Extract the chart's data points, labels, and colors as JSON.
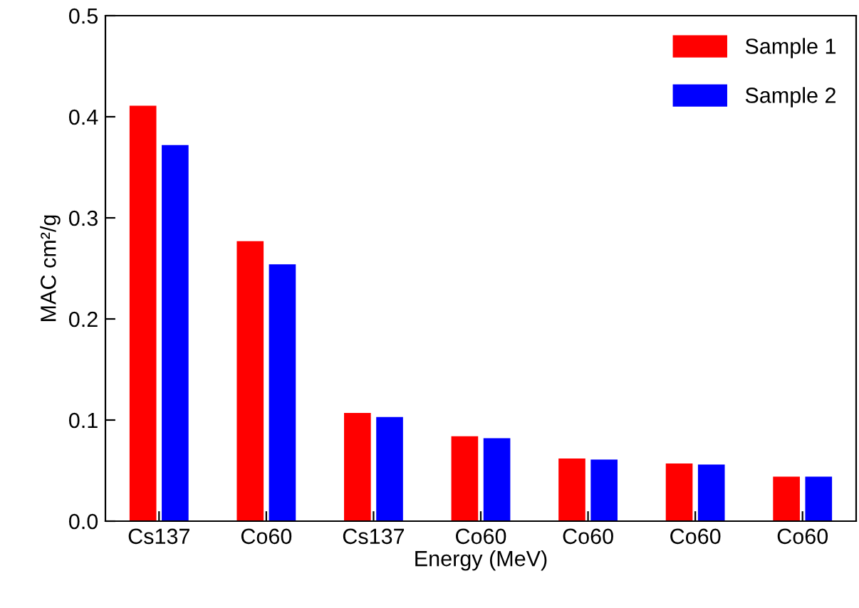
{
  "chart_data": {
    "type": "bar",
    "xlabel": "Energy (MeV)",
    "ylabel": "MAC cm²/g",
    "categories": [
      "Cs137",
      "Co60",
      "Cs137",
      "Co60",
      "Co60",
      "Co60",
      "Co60"
    ],
    "series": [
      {
        "name": "Sample 1",
        "color": "#ff0000",
        "values": [
          0.411,
          0.277,
          0.107,
          0.084,
          0.062,
          0.057,
          0.044
        ]
      },
      {
        "name": "Sample 2",
        "color": "#0000ff",
        "values": [
          0.372,
          0.254,
          0.103,
          0.082,
          0.061,
          0.056,
          0.044
        ]
      }
    ],
    "ylim": [
      0,
      0.5
    ],
    "yticks": [
      {
        "value": 0,
        "label": "0.0"
      },
      0.1,
      0.2,
      0.3,
      0.4,
      0.5
    ],
    "grid": false,
    "legend": "top right"
  }
}
